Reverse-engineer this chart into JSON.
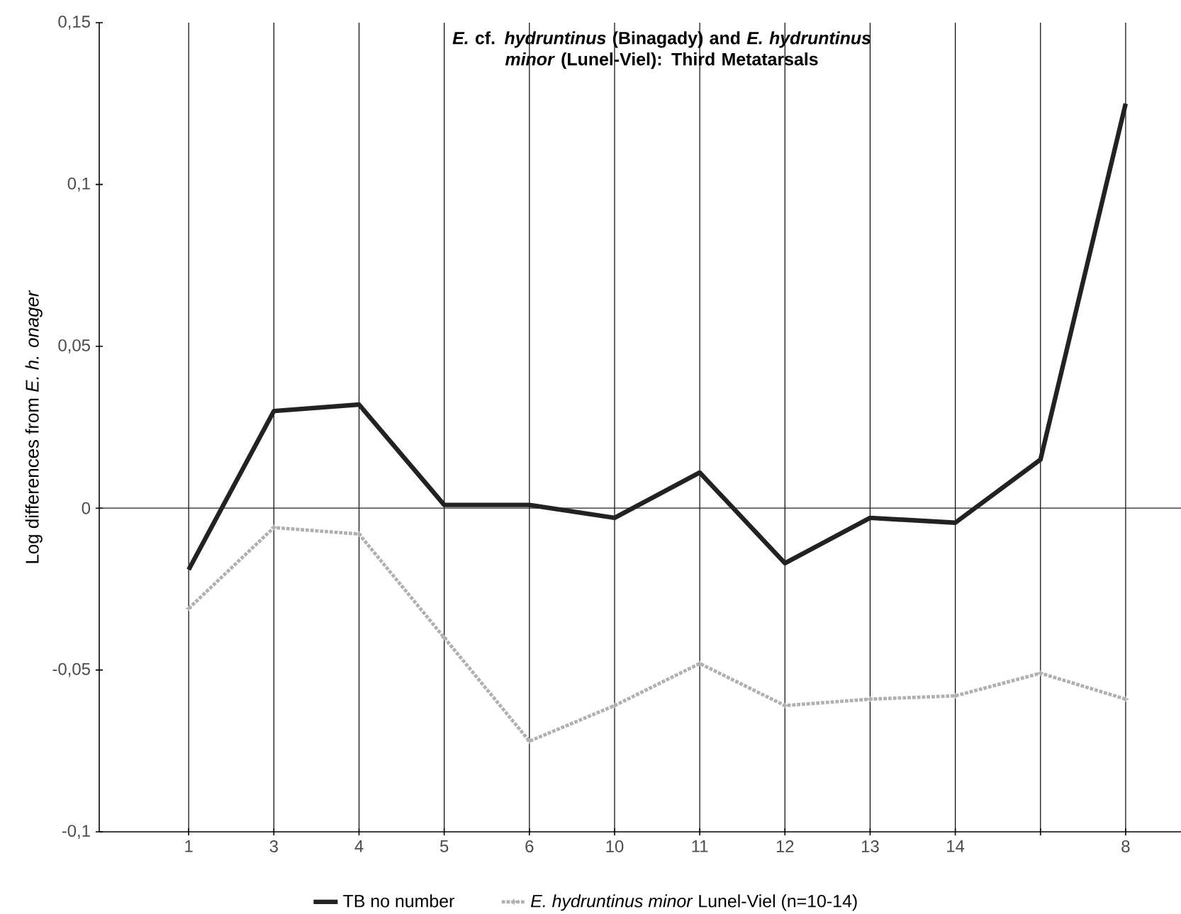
{
  "chart_data": {
    "type": "line",
    "title": "*E.* cf. *hydruntinus* (Binagady) and *E. hydruntinus minor* (Lunel-Viel): Third Metatarsals",
    "ylabel": "Log differences from *E. h. onager*",
    "categories": [
      "1",
      "3",
      "4",
      "5",
      "6",
      "10",
      "11",
      "12",
      "13",
      "14",
      null,
      "8"
    ],
    "series": [
      {
        "name": "TB no number",
        "color": "#222222",
        "line_style": "solid",
        "marker": "none",
        "values": [
          -0.019,
          0.03,
          0.032,
          0.001,
          0.001,
          -0.003,
          0.011,
          -0.017,
          -0.003,
          -0.0045,
          0.015,
          0.125
        ]
      },
      {
        "name": "*E. hydruntinus minor* Lunel-Viel (n=10-14)",
        "color": "#b0b0b0",
        "line_style": "dotted",
        "marker": "cross",
        "values": [
          -0.031,
          -0.006,
          -0.008,
          -0.04,
          -0.072,
          -0.061,
          -0.048,
          -0.061,
          -0.059,
          -0.058,
          -0.051,
          -0.059
        ]
      }
    ],
    "ylim": [
      -0.1,
      0.15
    ],
    "yticks": [
      {
        "value": -0.1,
        "label": "-0,1"
      },
      {
        "value": -0.05,
        "label": "-0,05"
      },
      {
        "value": 0,
        "label": "0"
      },
      {
        "value": 0.05,
        "label": "0,05"
      },
      {
        "value": 0.1,
        "label": "0,1"
      },
      {
        "value": 0.15,
        "label": "0,15"
      }
    ],
    "ref_lines": [
      {
        "axis": "y",
        "value": 0,
        "color": "#222222"
      }
    ],
    "grid": "x",
    "legend": "bottom"
  }
}
